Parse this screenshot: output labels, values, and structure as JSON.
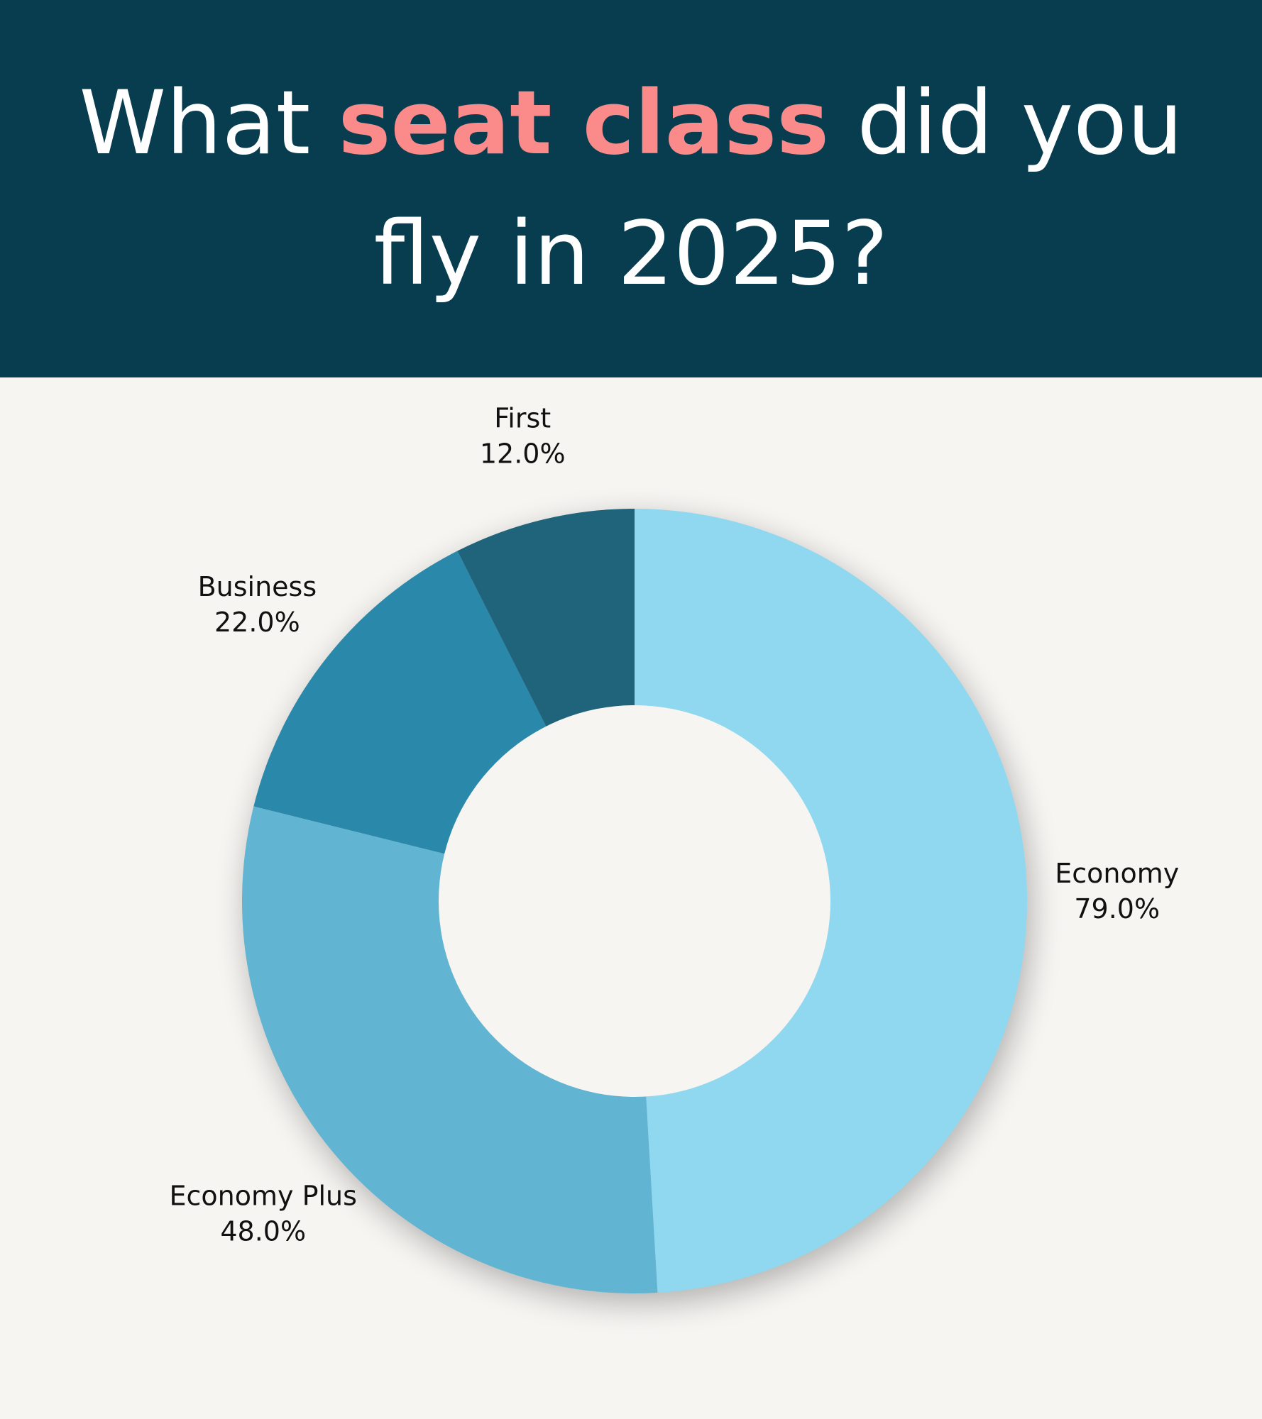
{
  "title": {
    "line1_before": "What ",
    "line1_highlight": "seat class",
    "line1_after": " did you",
    "line2": "fly in 2025?",
    "text_color": "#ffffff",
    "highlight_color": "#fb8a8a",
    "background_color": "#083d50"
  },
  "chart_data": {
    "type": "pie",
    "donut": true,
    "start": "top",
    "direction": "clockwise",
    "slices": [
      {
        "label": "Economy",
        "value": 79.0,
        "display": "79.0%",
        "color": "#8fd8f0"
      },
      {
        "label": "Economy Plus",
        "value": 48.0,
        "display": "48.0%",
        "color": "#61b4d2"
      },
      {
        "label": "Business",
        "value": 22.0,
        "display": "22.0%",
        "color": "#2a89aa"
      },
      {
        "label": "First",
        "value": 12.0,
        "display": "12.0%",
        "color": "#20647c"
      }
    ],
    "background_color": "#f7f5f2",
    "hole_color": "#f7f5f2"
  }
}
